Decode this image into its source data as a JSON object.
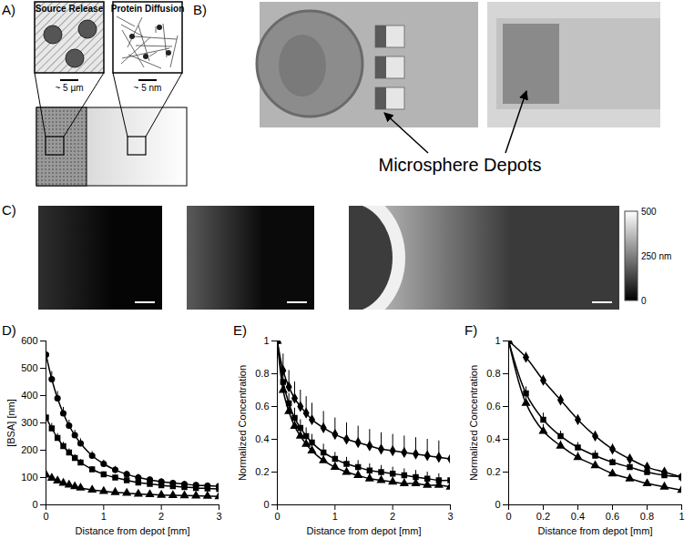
{
  "chart_data": [
    {
      "type": "line",
      "title": "D)",
      "x_label": "Distance from depot [mm]",
      "y_label": "[BSA] [nm]",
      "x": [
        0,
        0.1,
        0.2,
        0.3,
        0.4,
        0.5,
        0.6,
        0.8,
        1.0,
        1.2,
        1.4,
        1.6,
        1.8,
        2.0,
        2.2,
        2.4,
        2.6,
        2.8,
        3.0
      ],
      "xlim": [
        0,
        3
      ],
      "xticks": [
        0,
        1,
        2,
        3
      ],
      "ylim": [
        0,
        600
      ],
      "yticks": [
        0,
        100,
        200,
        300,
        400,
        500,
        600
      ],
      "grid": false,
      "series": [
        {
          "color": "#000000",
          "marker": "circle",
          "line_style": "solid",
          "values": [
            550,
            460,
            390,
            335,
            290,
            255,
            225,
            180,
            150,
            128,
            112,
            100,
            92,
            85,
            80,
            76,
            72,
            70,
            68
          ],
          "errors": [
            30,
            28,
            25,
            22,
            20,
            18,
            17,
            15,
            14,
            13,
            12,
            12,
            11,
            11,
            10,
            10,
            10,
            10,
            10
          ]
        },
        {
          "color": "#000000",
          "marker": "square",
          "line_style": "solid",
          "values": [
            320,
            280,
            245,
            215,
            192,
            172,
            155,
            130,
            112,
            100,
            90,
            82,
            77,
            72,
            68,
            65,
            62,
            60,
            58
          ],
          "errors": [
            20,
            18,
            16,
            14,
            13,
            12,
            11,
            10,
            9,
            9,
            8,
            8,
            8,
            7,
            7,
            7,
            7,
            7,
            7
          ]
        },
        {
          "color": "#000000",
          "marker": "triangle",
          "line_style": "solid",
          "values": [
            110,
            98,
            88,
            80,
            73,
            67,
            62,
            55,
            50,
            46,
            43,
            40,
            38,
            36,
            35,
            34,
            33,
            32,
            31
          ],
          "errors": [
            8,
            7,
            7,
            6,
            6,
            6,
            5,
            5,
            5,
            5,
            5,
            5,
            5,
            5,
            5,
            5,
            5,
            5,
            5
          ]
        }
      ]
    },
    {
      "type": "line",
      "title": "E)",
      "x_label": "Distance from depot [mm]",
      "y_label": "Normalized Concentration",
      "x": [
        0,
        0.1,
        0.2,
        0.3,
        0.4,
        0.5,
        0.6,
        0.8,
        1.0,
        1.2,
        1.4,
        1.6,
        1.8,
        2.0,
        2.2,
        2.4,
        2.6,
        2.8,
        3.0
      ],
      "xlim": [
        0,
        3
      ],
      "xticks": [
        0,
        1,
        2,
        3
      ],
      "ylim": [
        0,
        1
      ],
      "yticks": [
        0,
        0.2,
        0.4,
        0.6,
        0.8,
        1
      ],
      "grid": false,
      "series": [
        {
          "color": "#000000",
          "marker": "diamond",
          "line_style": "solid",
          "values": [
            1,
            0.82,
            0.72,
            0.65,
            0.6,
            0.56,
            0.52,
            0.47,
            0.43,
            0.4,
            0.38,
            0.36,
            0.34,
            0.33,
            0.32,
            0.31,
            0.3,
            0.29,
            0.28
          ],
          "errors": [
            0.02,
            0.1,
            0.1,
            0.1,
            0.1,
            0.1,
            0.1,
            0.1,
            0.1,
            0.1,
            0.1,
            0.1,
            0.1,
            0.1,
            0.1,
            0.1,
            0.1,
            0.1,
            0.1
          ]
        },
        {
          "color": "#000000",
          "marker": "square",
          "line_style": "solid",
          "values": [
            1,
            0.75,
            0.62,
            0.53,
            0.47,
            0.42,
            0.38,
            0.32,
            0.28,
            0.25,
            0.23,
            0.21,
            0.2,
            0.19,
            0.18,
            0.17,
            0.16,
            0.15,
            0.15
          ],
          "errors": [
            0.02,
            0.06,
            0.06,
            0.06,
            0.05,
            0.05,
            0.05,
            0.05,
            0.04,
            0.04,
            0.04,
            0.04,
            0.04,
            0.04,
            0.04,
            0.04,
            0.04,
            0.04,
            0.04
          ]
        },
        {
          "color": "#000000",
          "marker": "triangle",
          "line_style": "solid",
          "values": [
            1,
            0.7,
            0.57,
            0.48,
            0.42,
            0.37,
            0.33,
            0.27,
            0.23,
            0.2,
            0.18,
            0.16,
            0.15,
            0.14,
            0.13,
            0.13,
            0.12,
            0.12,
            0.11
          ],
          "errors": [
            0.02,
            0.05,
            0.05,
            0.05,
            0.04,
            0.04,
            0.04,
            0.04,
            0.03,
            0.03,
            0.03,
            0.03,
            0.03,
            0.03,
            0.03,
            0.03,
            0.03,
            0.03,
            0.03
          ]
        }
      ]
    },
    {
      "type": "line",
      "title": "F)",
      "x_label": "Distance from depot [mm]",
      "y_label": "Normalized Concentration",
      "x": [
        0,
        0.1,
        0.2,
        0.3,
        0.4,
        0.5,
        0.6,
        0.7,
        0.8,
        0.9,
        1.0
      ],
      "xlim": [
        0,
        1
      ],
      "xticks": [
        0,
        0.2,
        0.4,
        0.6,
        0.8,
        1
      ],
      "ylim": [
        0,
        1
      ],
      "yticks": [
        0,
        0.2,
        0.4,
        0.6,
        0.8,
        1
      ],
      "grid": false,
      "series": [
        {
          "color": "#000000",
          "marker": "diamond",
          "line_style": "solid",
          "values": [
            1,
            0.9,
            0.76,
            0.64,
            0.52,
            0.42,
            0.34,
            0.28,
            0.23,
            0.2,
            0.17
          ],
          "errors": [
            0.01,
            0.03,
            0.03,
            0.03,
            0.03,
            0.03,
            0.03,
            0.02,
            0.02,
            0.02,
            0.02
          ]
        },
        {
          "color": "#000000",
          "marker": "square",
          "line_style": "solid",
          "values": [
            1,
            0.68,
            0.52,
            0.42,
            0.35,
            0.3,
            0.26,
            0.23,
            0.2,
            0.18,
            0.17
          ],
          "errors": [
            0.01,
            0.04,
            0.04,
            0.03,
            0.03,
            0.03,
            0.02,
            0.02,
            0.02,
            0.02,
            0.02
          ]
        },
        {
          "color": "#000000",
          "marker": "triangle",
          "line_style": "solid",
          "values": [
            1,
            0.62,
            0.45,
            0.36,
            0.29,
            0.24,
            0.19,
            0.16,
            0.13,
            0.11,
            0.09
          ],
          "errors": [
            0.01,
            0.04,
            0.04,
            0.03,
            0.03,
            0.02,
            0.02,
            0.02,
            0.02,
            0.02,
            0.02
          ]
        }
      ]
    }
  ],
  "panels": {
    "A": {
      "label": "A)",
      "insets": [
        {
          "title": "Source Release",
          "scale": "~ 5 µm"
        },
        {
          "title": "Protein Diffusion",
          "scale": "~ 5 nm"
        }
      ]
    },
    "B": {
      "label": "B)",
      "annotation": "Microsphere Depots"
    },
    "C": {
      "label": "C)",
      "colorbar": {
        "range": [
          0,
          500
        ],
        "ticks": [
          500,
          {
            "value": 250,
            "label": "250 nm"
          },
          0
        ]
      }
    }
  }
}
